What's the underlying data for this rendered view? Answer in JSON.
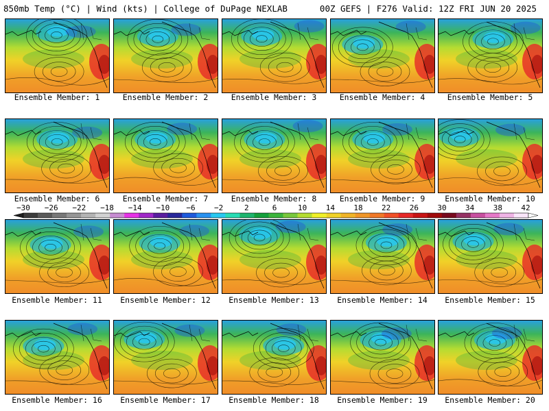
{
  "header": {
    "left_title": "850mb Temp (°C) | Wind (kts) | College of DuPage NEXLAB",
    "right_title": "00Z GEFS | F276 Valid: 12Z FRI JUN 20 2025"
  },
  "panels": [
    {
      "label": "Ensemble Member: 1"
    },
    {
      "label": "Ensemble Member: 2"
    },
    {
      "label": "Ensemble Member: 3"
    },
    {
      "label": "Ensemble Member: 4"
    },
    {
      "label": "Ensemble Member: 5"
    },
    {
      "label": "Ensemble Member: 6"
    },
    {
      "label": "Ensemble Member: 7"
    },
    {
      "label": "Ensemble Member: 8"
    },
    {
      "label": "Ensemble Member: 9"
    },
    {
      "label": "Ensemble Member: 10"
    },
    {
      "label": "Ensemble Member: 11"
    },
    {
      "label": "Ensemble Member: 12"
    },
    {
      "label": "Ensemble Member: 13"
    },
    {
      "label": "Ensemble Member: 14"
    },
    {
      "label": "Ensemble Member: 15"
    },
    {
      "label": "Ensemble Member: 16"
    },
    {
      "label": "Ensemble Member: 17"
    },
    {
      "label": "Ensemble Member: 18"
    },
    {
      "label": "Ensemble Member: 19"
    },
    {
      "label": "Ensemble Member: 20"
    }
  ],
  "colorbar": {
    "ticks": [
      "−30",
      "−26",
      "−22",
      "−18",
      "−14",
      "−10",
      "−6",
      "−2",
      "2",
      "6",
      "10",
      "14",
      "18",
      "22",
      "26",
      "30",
      "34",
      "38",
      "42"
    ],
    "colors": [
      "#3c3c3c",
      "#5a5a5a",
      "#787878",
      "#969696",
      "#b4b4b4",
      "#d2d2d2",
      "#c88cd2",
      "#e632e6",
      "#a028c8",
      "#5a1ea0",
      "#28289b",
      "#1e5adc",
      "#2891f0",
      "#28c8f0",
      "#28dcb4",
      "#1eb46e",
      "#14a03c",
      "#3cb43c",
      "#78c83c",
      "#b4dc32",
      "#f0f028",
      "#f0d228",
      "#f0b428",
      "#f09628",
      "#f07828",
      "#f05028",
      "#e62828",
      "#c81414",
      "#a00a0a",
      "#780a1e",
      "#963264",
      "#c850a0",
      "#e678c8",
      "#f0b4e6",
      "#fae6fa"
    ]
  }
}
